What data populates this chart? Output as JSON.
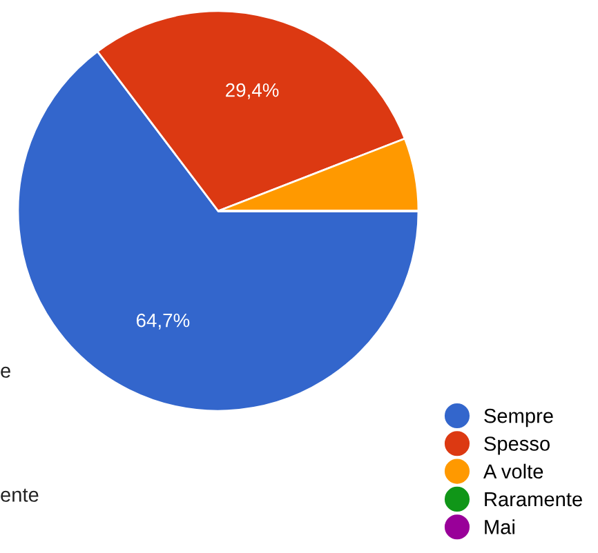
{
  "chart_data": {
    "type": "pie",
    "categories": [
      "Sempre",
      "Spesso",
      "A volte",
      "Raramente",
      "Mai"
    ],
    "values": [
      64.7,
      29.4,
      5.9,
      0,
      0
    ],
    "colors": [
      "#3366cc",
      "#dc3912",
      "#ff9900",
      "#109618",
      "#990099"
    ],
    "value_labels": [
      "64,7%",
      "29,4%",
      null,
      null,
      null
    ],
    "legend": "bottom right",
    "annotations": [
      "e",
      "ente"
    ]
  }
}
